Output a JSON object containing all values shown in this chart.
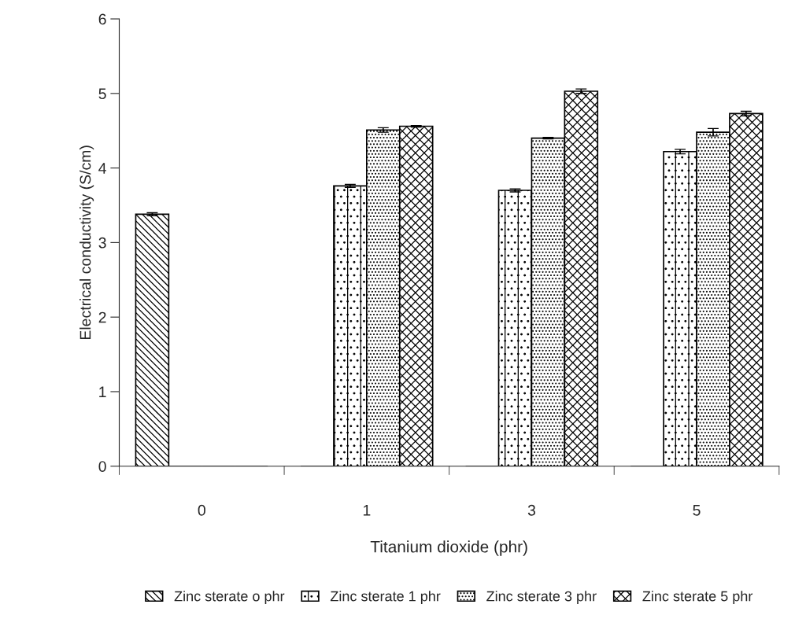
{
  "chart_data": {
    "type": "bar",
    "xlabel": "Titanium dioxide (phr)",
    "ylabel": "Electrical conductivity (S/cm)",
    "categories": [
      "0",
      "1",
      "3",
      "5"
    ],
    "series": [
      {
        "name": "Zinc sterate o phr",
        "color": "#000000",
        "values": [
          3.38,
          0,
          0,
          0
        ],
        "errors": [
          0.02,
          null,
          null,
          null
        ]
      },
      {
        "name": "Zinc sterate 1 phr",
        "color": "#000000",
        "values": [
          0,
          3.76,
          3.7,
          4.22
        ],
        "errors": [
          null,
          0.02,
          0.02,
          0.03
        ]
      },
      {
        "name": "Zinc sterate 3 phr",
        "color": "#000000",
        "values": [
          0,
          4.51,
          4.4,
          4.48
        ],
        "errors": [
          null,
          0.03,
          0.01,
          0.05
        ]
      },
      {
        "name": "Zinc sterate 5 phr",
        "color": "#000000",
        "values": [
          0,
          4.56,
          5.03,
          4.73
        ],
        "errors": [
          null,
          0.01,
          0.03,
          0.03
        ]
      }
    ],
    "ylim": [
      0,
      6
    ],
    "yticks": [
      0,
      1,
      2,
      3,
      4,
      5,
      6
    ],
    "grid": false,
    "legend": "bottom"
  }
}
